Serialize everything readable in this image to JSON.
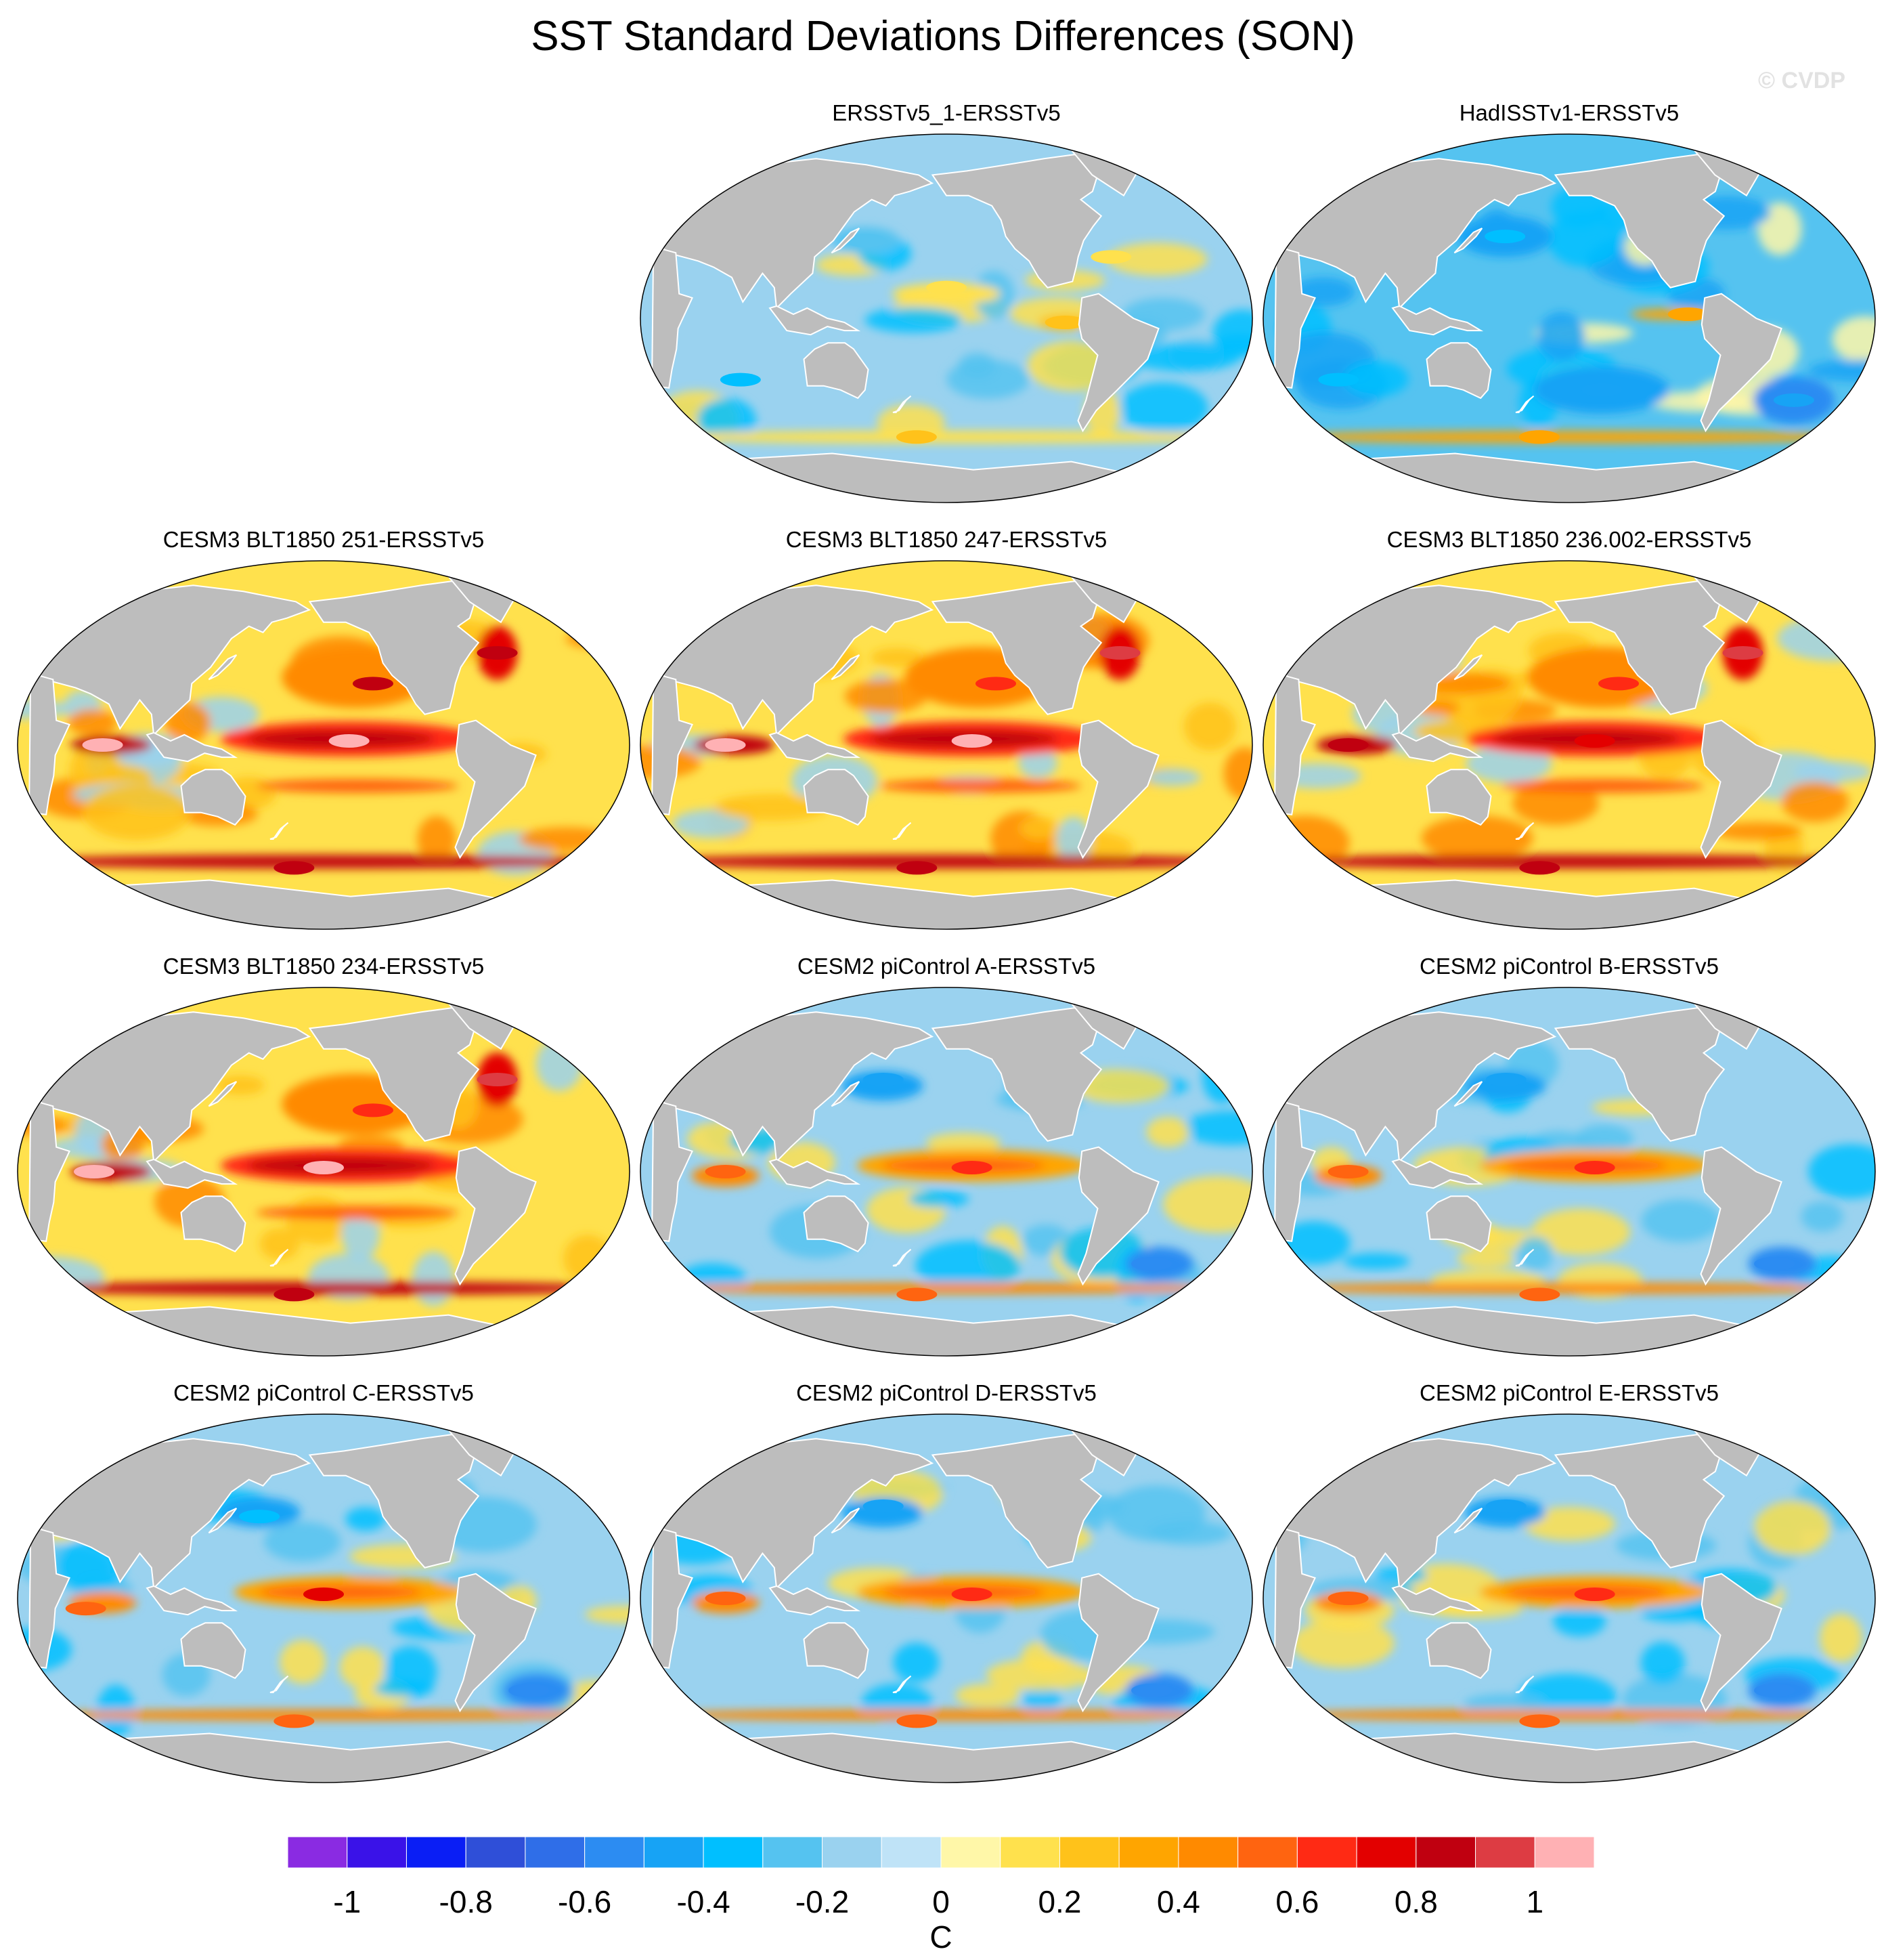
{
  "title": "SST Standard Deviations Differences (SON)",
  "watermark": "© CVDP",
  "colors": {
    "land": "#bdbdbd",
    "background": "#ffffff"
  },
  "chart_data": {
    "type": "heatmap",
    "projection": "Robinson (global map panels)",
    "units": "C",
    "color_levels": [
      -1.1,
      -1.0,
      -0.9,
      -0.8,
      -0.7,
      -0.6,
      -0.5,
      -0.4,
      -0.3,
      -0.2,
      -0.1,
      0.0,
      0.1,
      0.2,
      0.3,
      0.4,
      0.5,
      0.6,
      0.7,
      0.8,
      0.9,
      1.0
    ],
    "colorbar_colors": [
      "#8a2be2",
      "#3a12e8",
      "#0a1ef5",
      "#2f4fd8",
      "#2f6ee8",
      "#2c8cf2",
      "#17a3f5",
      "#00bfff",
      "#55c3f0",
      "#9ad2ef",
      "#bfe3f7",
      "#fff7a8",
      "#ffe14d",
      "#ffc21a",
      "#ffa500",
      "#ff8a00",
      "#ff6410",
      "#ff2a14",
      "#e30000",
      "#c00010",
      "#dd3c43",
      "#ffb1b4"
    ],
    "colorbar_ticks": [
      {
        "value": -1.0,
        "label": "-1"
      },
      {
        "value": -0.8,
        "label": "-0.8"
      },
      {
        "value": -0.6,
        "label": "-0.6"
      },
      {
        "value": -0.4,
        "label": "-0.4"
      },
      {
        "value": -0.2,
        "label": "-0.2"
      },
      {
        "value": 0.0,
        "label": "0"
      },
      {
        "value": 0.2,
        "label": "0.2"
      },
      {
        "value": 0.4,
        "label": "0.4"
      },
      {
        "value": 0.6,
        "label": "0.6"
      },
      {
        "value": 0.8,
        "label": "0.8"
      },
      {
        "value": 1.0,
        "label": "1"
      }
    ],
    "colorbar_label": "C",
    "panels": [
      {
        "id": "ersstv5-1",
        "title": "ERSSTv5_1-ERSSTv5",
        "pattern": "weak",
        "row": 0,
        "col": 1,
        "features": [
          {
            "lon": 200,
            "lat": 15,
            "value": 0.15
          },
          {
            "lon": 270,
            "lat": -2,
            "value": 0.2
          },
          {
            "lon": 300,
            "lat": 30,
            "value": 0.15
          },
          {
            "lon": 180,
            "lat": -58,
            "value": 0.2
          },
          {
            "lon": 150,
            "lat": 38,
            "value": -0.3
          },
          {
            "lon": 75,
            "lat": -30,
            "value": -0.35
          }
        ]
      },
      {
        "id": "hadisstv1",
        "title": "HadISSTv1-ERSSTv5",
        "pattern": "negative",
        "row": 0,
        "col": 2,
        "features": [
          {
            "lon": 160,
            "lat": 40,
            "value": -0.4
          },
          {
            "lon": 60,
            "lat": -30,
            "value": -0.4
          },
          {
            "lon": 220,
            "lat": -35,
            "value": -0.5
          },
          {
            "lon": 340,
            "lat": -40,
            "value": -0.5
          },
          {
            "lon": 270,
            "lat": 2,
            "value": 0.3
          },
          {
            "lon": 180,
            "lat": -58,
            "value": 0.3
          }
        ]
      },
      {
        "id": "cesm3-251",
        "title": "CESM3 BLT1850 251-ERSSTv5",
        "pattern": "strong",
        "row": 1,
        "col": 0,
        "features": [
          {
            "lon": 215,
            "lat": 2,
            "value": 1.0
          },
          {
            "lon": 70,
            "lat": 0,
            "value": 1.0
          },
          {
            "lon": 230,
            "lat": 30,
            "value": 0.8
          },
          {
            "lon": 310,
            "lat": 45,
            "value": 0.8
          },
          {
            "lon": 180,
            "lat": -60,
            "value": 0.8
          }
        ]
      },
      {
        "id": "cesm3-247",
        "title": "CESM3 BLT1850 247-ERSSTv5",
        "pattern": "strong",
        "row": 1,
        "col": 1,
        "features": [
          {
            "lon": 215,
            "lat": 2,
            "value": 1.0
          },
          {
            "lon": 70,
            "lat": 0,
            "value": 1.0
          },
          {
            "lon": 230,
            "lat": 30,
            "value": 0.6
          },
          {
            "lon": 310,
            "lat": 45,
            "value": 0.9
          },
          {
            "lon": 180,
            "lat": -60,
            "value": 0.8
          }
        ]
      },
      {
        "id": "cesm3-236",
        "title": "CESM3 BLT1850 236.002-ERSSTv5",
        "pattern": "strong",
        "row": 1,
        "col": 2,
        "features": [
          {
            "lon": 215,
            "lat": 2,
            "value": 0.7
          },
          {
            "lon": 70,
            "lat": 0,
            "value": 0.8
          },
          {
            "lon": 230,
            "lat": 30,
            "value": 0.6
          },
          {
            "lon": 310,
            "lat": 45,
            "value": 0.9
          },
          {
            "lon": 180,
            "lat": -60,
            "value": 0.8
          }
        ]
      },
      {
        "id": "cesm3-234",
        "title": "CESM3 BLT1850 234-ERSSTv5",
        "pattern": "strong",
        "row": 2,
        "col": 0,
        "features": [
          {
            "lon": 200,
            "lat": 2,
            "value": 1.0
          },
          {
            "lon": 65,
            "lat": 0,
            "value": 1.0
          },
          {
            "lon": 230,
            "lat": 30,
            "value": 0.6
          },
          {
            "lon": 310,
            "lat": 45,
            "value": 0.9
          },
          {
            "lon": 180,
            "lat": -60,
            "value": 0.8
          }
        ]
      },
      {
        "id": "cesm2-a",
        "title": "CESM2 piControl A-ERSSTv5",
        "pattern": "moderate",
        "row": 2,
        "col": 1,
        "features": [
          {
            "lon": 215,
            "lat": 2,
            "value": 0.6
          },
          {
            "lon": 70,
            "lat": 0,
            "value": 0.5
          },
          {
            "lon": 160,
            "lat": 45,
            "value": -0.5
          },
          {
            "lon": 330,
            "lat": -45,
            "value": -0.6
          },
          {
            "lon": 180,
            "lat": -60,
            "value": 0.5
          }
        ]
      },
      {
        "id": "cesm2-b",
        "title": "CESM2 piControl B-ERSSTv5",
        "pattern": "moderate",
        "row": 2,
        "col": 2,
        "features": [
          {
            "lon": 215,
            "lat": 2,
            "value": 0.6
          },
          {
            "lon": 70,
            "lat": 0,
            "value": 0.5
          },
          {
            "lon": 160,
            "lat": 45,
            "value": -0.5
          },
          {
            "lon": 330,
            "lat": -45,
            "value": -0.6
          },
          {
            "lon": 180,
            "lat": -60,
            "value": 0.5
          }
        ]
      },
      {
        "id": "cesm2-c",
        "title": "CESM2 piControl C-ERSSTv5",
        "pattern": "moderate",
        "row": 3,
        "col": 0,
        "features": [
          {
            "lon": 200,
            "lat": 2,
            "value": 0.7
          },
          {
            "lon": 60,
            "lat": -5,
            "value": 0.5
          },
          {
            "lon": 160,
            "lat": 40,
            "value": -0.4
          },
          {
            "lon": 330,
            "lat": -45,
            "value": -0.6
          },
          {
            "lon": 180,
            "lat": -60,
            "value": 0.5
          }
        ]
      },
      {
        "id": "cesm2-d",
        "title": "CESM2 piControl D-ERSSTv5",
        "pattern": "moderate",
        "row": 3,
        "col": 1,
        "features": [
          {
            "lon": 215,
            "lat": 2,
            "value": 0.6
          },
          {
            "lon": 70,
            "lat": 0,
            "value": 0.5
          },
          {
            "lon": 160,
            "lat": 45,
            "value": -0.5
          },
          {
            "lon": 330,
            "lat": -45,
            "value": -0.6
          },
          {
            "lon": 180,
            "lat": -60,
            "value": 0.5
          }
        ]
      },
      {
        "id": "cesm2-e",
        "title": "CESM2 piControl E-ERSSTv5",
        "pattern": "moderate",
        "row": 3,
        "col": 2,
        "features": [
          {
            "lon": 215,
            "lat": 2,
            "value": 0.6
          },
          {
            "lon": 70,
            "lat": 0,
            "value": 0.5
          },
          {
            "lon": 160,
            "lat": 45,
            "value": -0.5
          },
          {
            "lon": 330,
            "lat": -45,
            "value": -0.6
          },
          {
            "lon": 180,
            "lat": -60,
            "value": 0.5
          }
        ]
      }
    ]
  }
}
